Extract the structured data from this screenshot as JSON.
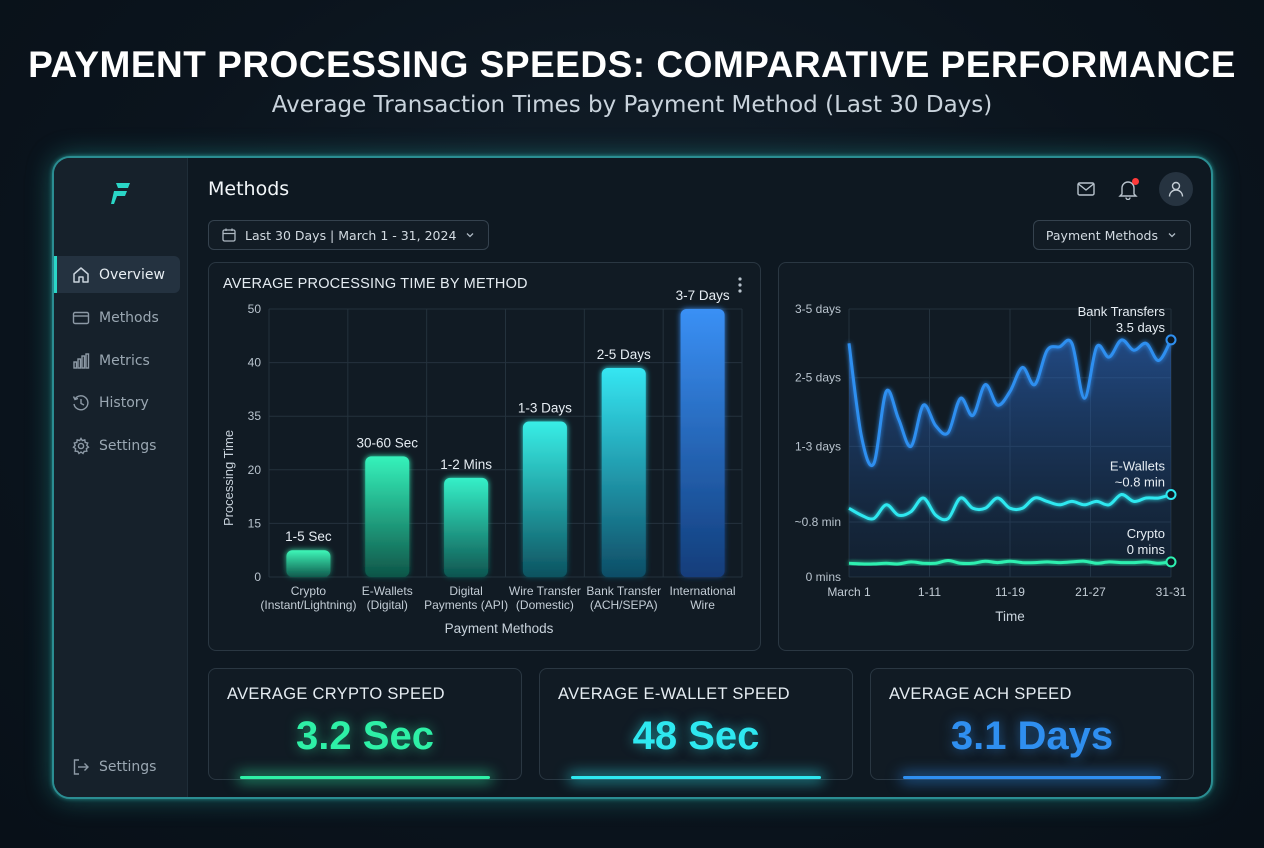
{
  "header": {
    "title": "PAYMENT PROCESSING SPEEDS: COMPARATIVE PERFORMANCE",
    "subtitle": "Average Transaction Times by Payment Method (Last 30 Days)"
  },
  "sidebar": {
    "items": [
      {
        "label": "Overview",
        "icon": "home-icon",
        "active": true
      },
      {
        "label": "Methods",
        "icon": "card-icon",
        "active": false
      },
      {
        "label": "Metrics",
        "icon": "bar-chart-icon",
        "active": false
      },
      {
        "label": "History",
        "icon": "history-icon",
        "active": false
      },
      {
        "label": "Settings",
        "icon": "gear-icon",
        "active": false
      }
    ],
    "bottom_item": {
      "label": "Settings",
      "icon": "logout-icon"
    }
  },
  "page": {
    "title": "Methods",
    "date_filter": "Last 30 Days | March 1 - 31, 2024",
    "method_filter": "Payment Methods"
  },
  "colors": {
    "accent": "#2ad6c7",
    "crypto": "#2ef0a6",
    "ewallet": "#2ee8f0",
    "ach": "#2f8ff0",
    "notification": "#ff3a3a"
  },
  "chart_data": [
    {
      "type": "bar",
      "title": "AVERAGE PROCESSING TIME BY METHOD",
      "xlabel": "Payment Methods",
      "ylabel": "Processing Time",
      "y_ticks": [
        "0",
        "15",
        "20",
        "35",
        "40",
        "50"
      ],
      "categories": [
        [
          "Crypto",
          "(Instant/Lightning)"
        ],
        [
          "E-Wallets",
          "(Digital)"
        ],
        [
          "Digital",
          "Payments (API)"
        ],
        [
          "Wire Transfer",
          "(Domestic)"
        ],
        [
          "Bank Transfer",
          "(ACH/SEPA)"
        ],
        [
          "International",
          "Wire"
        ]
      ],
      "values": [
        0.5,
        3.5,
        2.7,
        4.8,
        6.8,
        9.0
      ],
      "value_scale": "tick index",
      "data_labels": [
        "1-5 Sec",
        "30-60 Sec",
        "1-2 Mins",
        "1-3 Days",
        "2-5 Days",
        "3-7 Days"
      ],
      "grid": true
    },
    {
      "type": "line",
      "xlabel": "Time",
      "x_ticks": [
        "March 1",
        "1-11",
        "11-19",
        "21-27",
        "31-31"
      ],
      "y_ticks": [
        "0 mins",
        "~0.8 min",
        "1-3 days",
        "2-5 days",
        "3-5 days"
      ],
      "series": [
        {
          "name": "Bank Transfers",
          "end_label": "3.5 days",
          "values": [
            3.4,
            2.05,
            1.65,
            2.7,
            2.3,
            1.9,
            2.5,
            2.2,
            2.1,
            2.6,
            2.35,
            2.8,
            2.5,
            2.7,
            3.05,
            2.8,
            3.3,
            3.35,
            3.4,
            2.6,
            3.35,
            3.2,
            3.45,
            3.3,
            3.4,
            3.15,
            3.45
          ]
        },
        {
          "name": "E-Wallets",
          "end_label": "~0.8 min",
          "values": [
            1.0,
            0.9,
            0.85,
            1.05,
            0.9,
            0.95,
            1.15,
            0.9,
            0.85,
            1.15,
            1.0,
            1.0,
            1.15,
            1.0,
            1.0,
            1.15,
            1.1,
            1.05,
            1.1,
            1.05,
            1.1,
            1.05,
            1.2,
            1.1,
            1.15,
            1.15,
            1.2
          ]
        },
        {
          "name": "Crypto",
          "end_label": "0 mins",
          "values": [
            0.2,
            0.19,
            0.19,
            0.2,
            0.19,
            0.22,
            0.2,
            0.2,
            0.24,
            0.2,
            0.2,
            0.23,
            0.21,
            0.23,
            0.21,
            0.21,
            0.22,
            0.21,
            0.22,
            0.23,
            0.2,
            0.22,
            0.21,
            0.21,
            0.22,
            0.2,
            0.22
          ]
        }
      ],
      "grid": true
    }
  ],
  "kpis": [
    {
      "label": "AVERAGE CRYPTO SPEED",
      "value": "3.2 Sec",
      "color": "#2ef0a6"
    },
    {
      "label": "AVERAGE E-WALLET SPEED",
      "value": "48 Sec",
      "color": "#2ee8f0"
    },
    {
      "label": "AVERAGE ACH SPEED",
      "value": "3.1 Days",
      "color": "#2f8ff0"
    }
  ]
}
